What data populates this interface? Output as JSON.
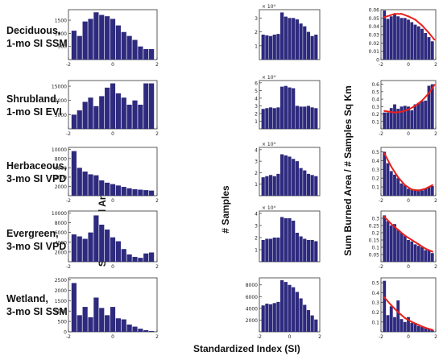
{
  "row_labels": [
    {
      "line1": "Deciduous,",
      "line2": "1-mo SI SSM"
    },
    {
      "line1": "Shrubland,",
      "line2": "1-mo SI EVI"
    },
    {
      "line1": "Herbaceous,",
      "line2": "3-mo SI VPD"
    },
    {
      "line1": "Evergreen,",
      "line2": "3-mo SI VPD"
    },
    {
      "line1": "Wetland,",
      "line2": "3-mo SI SSM"
    }
  ],
  "column_labels": {
    "burned": "Sum Burned Area Sq Km",
    "samples": "# Samples",
    "ratio": "Sum Burned Area / # Samples Sq Km"
  },
  "x_title": "Standardized Index (SI)",
  "colors": {
    "bar": "#2e2a7e",
    "fit": "#e8201c",
    "axis": "#333333"
  },
  "chart_data": [
    {
      "type": "bar",
      "row": "Deciduous, 1-mo SI SSM",
      "column": "Sum Burned Area Sq Km",
      "x": [
        -1.75,
        -1.5,
        -1.25,
        -1.0,
        -0.75,
        -0.5,
        -0.25,
        0.0,
        0.25,
        0.5,
        0.75,
        1.0,
        1.25,
        1.5,
        1.75
      ],
      "values": [
        1100,
        900,
        1450,
        1550,
        1800,
        1700,
        1650,
        1550,
        1300,
        1050,
        900,
        750,
        500,
        400,
        400
      ],
      "xlim": [
        -2,
        2
      ],
      "xticks": [
        "-2",
        "0",
        "2"
      ],
      "ylim": [
        0,
        1900
      ],
      "yticks": [
        {
          "v": 500,
          "label": "500"
        },
        {
          "v": 1000,
          "label": "1000"
        },
        {
          "v": 1500,
          "label": "1500"
        }
      ]
    },
    {
      "type": "bar",
      "row": "Deciduous, 1-mo SI SSM",
      "column": "# Samples",
      "x": [
        -1.75,
        -1.5,
        -1.25,
        -1.0,
        -0.75,
        -0.5,
        -0.25,
        0.0,
        0.25,
        0.5,
        0.75,
        1.0,
        1.25,
        1.5,
        1.75
      ],
      "values": [
        1.8,
        1.75,
        1.7,
        1.8,
        1.85,
        3.4,
        3.1,
        3.0,
        3.0,
        2.9,
        2.6,
        2.4,
        2.0,
        1.7,
        1.8
      ],
      "xlim": [
        -2,
        2
      ],
      "xticks": [],
      "ylim": [
        0,
        3.6
      ],
      "exponent": "× 10⁴",
      "yticks": [
        {
          "v": 1,
          "label": "1"
        },
        {
          "v": 2,
          "label": "2"
        },
        {
          "v": 3,
          "label": "3"
        }
      ]
    },
    {
      "type": "bar",
      "row": "Deciduous, 1-mo SI SSM",
      "column": "Sum Burned Area / # Samples Sq Km",
      "x": [
        -1.75,
        -1.5,
        -1.25,
        -1.0,
        -0.75,
        -0.5,
        -0.25,
        0.0,
        0.25,
        0.5,
        0.75,
        1.0,
        1.25,
        1.5,
        1.75
      ],
      "values": [
        0.059,
        0.049,
        0.052,
        0.055,
        0.052,
        0.05,
        0.05,
        0.048,
        0.045,
        0.042,
        0.04,
        0.037,
        0.032,
        0.027,
        0.022
      ],
      "xlim": [
        -2,
        2
      ],
      "xticks": [
        "-2",
        "0",
        "2"
      ],
      "ylim": [
        0,
        0.06
      ],
      "yticks": [
        {
          "v": 0,
          "label": "0"
        },
        {
          "v": 0.01,
          "label": "0.01"
        },
        {
          "v": 0.02,
          "label": "0.02"
        },
        {
          "v": 0.03,
          "label": "0.03"
        },
        {
          "v": 0.04,
          "label": "0.04"
        },
        {
          "v": 0.05,
          "label": "0.05"
        },
        {
          "v": 0.06,
          "label": "0.06"
        }
      ],
      "fit": {
        "x": [
          -1.75,
          -1.0,
          -0.5,
          0.0,
          0.5,
          1.0,
          1.5,
          1.9
        ],
        "y": [
          0.051,
          0.055,
          0.055,
          0.052,
          0.048,
          0.041,
          0.032,
          0.024
        ]
      }
    },
    {
      "type": "bar",
      "row": "Shrubland, 1-mo SI EVI",
      "column": "Sum Burned Area Sq Km",
      "x": [
        -1.75,
        -1.5,
        -1.25,
        -1.0,
        -0.75,
        -0.5,
        -0.25,
        0.0,
        0.25,
        0.5,
        0.75,
        1.0,
        1.25,
        1.5,
        1.75
      ],
      "values": [
        5000,
        6500,
        9500,
        11000,
        8000,
        11500,
        14500,
        16000,
        12500,
        11000,
        8500,
        10000,
        8500,
        16000,
        16000
      ],
      "xlim": [
        -2,
        2
      ],
      "xticks": [
        "-2",
        "0",
        "2"
      ],
      "ylim": [
        0,
        17000
      ],
      "yticks": [
        {
          "v": 5000,
          "label": "5000"
        },
        {
          "v": 10000,
          "label": "10000"
        },
        {
          "v": 15000,
          "label": "15000"
        }
      ]
    },
    {
      "type": "bar",
      "row": "Shrubland, 1-mo SI EVI",
      "column": "# Samples",
      "x": [
        -1.75,
        -1.5,
        -1.25,
        -1.0,
        -0.75,
        -0.5,
        -0.25,
        0.0,
        0.25,
        0.5,
        0.75,
        1.0,
        1.25,
        1.5,
        1.75
      ],
      "values": [
        2.6,
        2.7,
        2.8,
        2.7,
        2.8,
        5.5,
        5.6,
        5.4,
        5.3,
        3.0,
        2.9,
        2.9,
        3.0,
        2.8,
        2.7
      ],
      "xlim": [
        -2,
        2
      ],
      "xticks": [],
      "ylim": [
        0,
        6.3
      ],
      "exponent": "× 10⁴",
      "yticks": [
        {
          "v": 1,
          "label": "1"
        },
        {
          "v": 2,
          "label": "2"
        },
        {
          "v": 3,
          "label": "3"
        },
        {
          "v": 4,
          "label": "4"
        },
        {
          "v": 5,
          "label": "5"
        },
        {
          "v": 6,
          "label": "6"
        }
      ]
    },
    {
      "type": "bar",
      "row": "Shrubland, 1-mo SI EVI",
      "column": "Sum Burned Area / # Samples Sq Km",
      "x": [
        -1.75,
        -1.5,
        -1.25,
        -1.0,
        -0.75,
        -0.5,
        -0.25,
        0.0,
        0.25,
        0.5,
        0.75,
        1.0,
        1.25,
        1.5,
        1.75
      ],
      "values": [
        0.22,
        0.22,
        0.28,
        0.33,
        0.27,
        0.3,
        0.31,
        0.3,
        0.25,
        0.33,
        0.35,
        0.37,
        0.38,
        0.58,
        0.6
      ],
      "xlim": [
        -2,
        2
      ],
      "xticks": [
        "-2",
        "0",
        "2"
      ],
      "ylim": [
        0,
        0.65
      ],
      "yticks": [
        {
          "v": 0.1,
          "label": "0.1"
        },
        {
          "v": 0.2,
          "label": "0.2"
        },
        {
          "v": 0.3,
          "label": "0.3"
        },
        {
          "v": 0.4,
          "label": "0.4"
        },
        {
          "v": 0.5,
          "label": "0.5"
        },
        {
          "v": 0.6,
          "label": "0.6"
        }
      ],
      "fit": {
        "x": [
          -1.75,
          -1.0,
          -0.5,
          0.0,
          0.5,
          1.0,
          1.5,
          1.9
        ],
        "y": [
          0.24,
          0.22,
          0.23,
          0.26,
          0.31,
          0.38,
          0.48,
          0.59
        ]
      }
    },
    {
      "type": "bar",
      "row": "Herbaceous, 3-mo SI VPD",
      "column": "Sum Burned Area Sq Km",
      "x": [
        -1.75,
        -1.5,
        -1.25,
        -1.0,
        -0.75,
        -0.5,
        -0.25,
        0.0,
        0.25,
        0.5,
        0.75,
        1.0,
        1.25,
        1.5,
        1.75
      ],
      "values": [
        9600,
        6000,
        5200,
        4600,
        4400,
        3300,
        2800,
        2500,
        2200,
        1900,
        1600,
        1400,
        1300,
        1200,
        1100
      ],
      "xlim": [
        -2,
        2
      ],
      "xticks": [
        "-2",
        "0",
        "2"
      ],
      "ylim": [
        0,
        10400
      ],
      "yticks": [
        {
          "v": 2000,
          "label": "2000"
        },
        {
          "v": 4000,
          "label": "4000"
        },
        {
          "v": 6000,
          "label": "6000"
        },
        {
          "v": 8000,
          "label": "8000"
        },
        {
          "v": 10000,
          "label": "10000"
        }
      ]
    },
    {
      "type": "bar",
      "row": "Herbaceous, 3-mo SI VPD",
      "column": "# Samples",
      "x": [
        -1.75,
        -1.5,
        -1.25,
        -1.0,
        -0.75,
        -0.5,
        -0.25,
        0.0,
        0.25,
        0.5,
        0.75,
        1.0,
        1.25,
        1.5,
        1.75
      ],
      "values": [
        1.6,
        1.7,
        1.8,
        1.7,
        1.9,
        3.6,
        3.5,
        3.4,
        3.2,
        3.0,
        2.4,
        2.2,
        1.9,
        1.8,
        1.7
      ],
      "xlim": [
        -2,
        2
      ],
      "xticks": [],
      "ylim": [
        0,
        4.2
      ],
      "exponent": "× 10⁴",
      "yticks": [
        {
          "v": 1,
          "label": "1"
        },
        {
          "v": 2,
          "label": "2"
        },
        {
          "v": 3,
          "label": "3"
        },
        {
          "v": 4,
          "label": "4"
        }
      ]
    },
    {
      "type": "bar",
      "row": "Herbaceous, 3-mo SI VPD",
      "column": "Sum Burned Area / # Samples Sq Km",
      "x": [
        -1.75,
        -1.5,
        -1.25,
        -1.0,
        -0.75,
        -0.5,
        -0.25,
        0.0,
        0.25,
        0.5,
        0.75,
        1.0,
        1.25,
        1.5,
        1.75
      ],
      "values": [
        0.5,
        0.37,
        0.28,
        0.24,
        0.2,
        0.14,
        0.12,
        0.08,
        0.07,
        0.06,
        0.07,
        0.06,
        0.08,
        0.1,
        0.11
      ],
      "xlim": [
        -2,
        2
      ],
      "xticks": [
        "-2",
        "0",
        "2"
      ],
      "ylim": [
        0,
        0.55
      ],
      "yticks": [
        {
          "v": 0.1,
          "label": "0.1"
        },
        {
          "v": 0.2,
          "label": "0.2"
        },
        {
          "v": 0.3,
          "label": "0.3"
        },
        {
          "v": 0.4,
          "label": "0.4"
        },
        {
          "v": 0.5,
          "label": "0.5"
        }
      ],
      "fit": {
        "x": [
          -1.75,
          -1.25,
          -0.75,
          -0.25,
          0.25,
          0.75,
          1.25,
          1.75
        ],
        "y": [
          0.48,
          0.33,
          0.21,
          0.12,
          0.07,
          0.06,
          0.08,
          0.12
        ]
      }
    },
    {
      "type": "bar",
      "row": "Evergreen, 3-mo SI VPD",
      "column": "Sum Burned Area Sq Km",
      "x": [
        -1.75,
        -1.5,
        -1.25,
        -1.0,
        -0.75,
        -0.5,
        -0.25,
        0.0,
        0.25,
        0.5,
        0.75,
        1.0,
        1.25,
        1.5,
        1.75
      ],
      "values": [
        5600,
        5200,
        4700,
        6000,
        9500,
        7600,
        6600,
        5000,
        4200,
        2600,
        1500,
        1000,
        800,
        1700,
        1900
      ],
      "xlim": [
        -2,
        2
      ],
      "xticks": [
        "-2",
        "0",
        "2"
      ],
      "ylim": [
        0,
        10400
      ],
      "yticks": [
        {
          "v": 2000,
          "label": "2000"
        },
        {
          "v": 4000,
          "label": "4000"
        },
        {
          "v": 6000,
          "label": "6000"
        },
        {
          "v": 8000,
          "label": "8000"
        },
        {
          "v": 10000,
          "label": "10000"
        }
      ]
    },
    {
      "type": "bar",
      "row": "Evergreen, 3-mo SI VPD",
      "column": "# Samples",
      "x": [
        -1.75,
        -1.5,
        -1.25,
        -1.0,
        -0.75,
        -0.5,
        -0.25,
        0.0,
        0.25,
        0.5,
        0.75,
        1.0,
        1.25,
        1.5,
        1.75
      ],
      "values": [
        1.8,
        1.9,
        1.9,
        2.0,
        2.0,
        3.7,
        3.6,
        3.6,
        3.4,
        2.4,
        2.1,
        1.9,
        1.8,
        1.8,
        1.7
      ],
      "xlim": [
        -2,
        2
      ],
      "xticks": [],
      "ylim": [
        0,
        4.2
      ],
      "exponent": "× 10⁴",
      "yticks": [
        {
          "v": 1,
          "label": "1"
        },
        {
          "v": 2,
          "label": "2"
        },
        {
          "v": 3,
          "label": "3"
        },
        {
          "v": 4,
          "label": "4"
        }
      ]
    },
    {
      "type": "bar",
      "row": "Evergreen, 3-mo SI VPD",
      "column": "Sum Burned Area / # Samples Sq Km",
      "x": [
        -1.75,
        -1.5,
        -1.25,
        -1.0,
        -0.75,
        -0.5,
        -0.25,
        0.0,
        0.25,
        0.5,
        0.75,
        1.0,
        1.25,
        1.5,
        1.75
      ],
      "values": [
        0.32,
        0.28,
        0.25,
        0.26,
        0.22,
        0.2,
        0.18,
        0.15,
        0.14,
        0.12,
        0.11,
        0.1,
        0.08,
        0.08,
        0.06
      ],
      "xlim": [
        -2,
        2
      ],
      "xticks": [
        "-2",
        "0",
        "2"
      ],
      "ylim": [
        0,
        0.35
      ],
      "yticks": [
        {
          "v": 0.05,
          "label": "0.05"
        },
        {
          "v": 0.1,
          "label": "0.1"
        },
        {
          "v": 0.15,
          "label": "0.15"
        },
        {
          "v": 0.2,
          "label": "0.2"
        },
        {
          "v": 0.25,
          "label": "0.25"
        },
        {
          "v": 0.3,
          "label": "0.3"
        }
      ],
      "fit": {
        "x": [
          -1.75,
          -1.25,
          -0.75,
          -0.25,
          0.25,
          0.75,
          1.25,
          1.75
        ],
        "y": [
          0.31,
          0.26,
          0.22,
          0.18,
          0.15,
          0.12,
          0.09,
          0.07
        ]
      }
    },
    {
      "type": "bar",
      "row": "Wetland, 3-mo SI SSM",
      "column": "Sum Burned Area Sq Km",
      "x": [
        -1.75,
        -1.5,
        -1.25,
        -1.0,
        -0.75,
        -0.5,
        -0.25,
        0.0,
        0.25,
        0.5,
        0.75,
        1.0,
        1.25,
        1.5,
        1.75
      ],
      "values": [
        2350,
        800,
        1200,
        700,
        1650,
        1150,
        800,
        1200,
        650,
        600,
        350,
        250,
        150,
        80,
        40
      ],
      "xlim": [
        -2,
        2
      ],
      "xticks": [
        "-2",
        "0",
        "2"
      ],
      "ylim": [
        0,
        2600
      ],
      "yticks": [
        {
          "v": 0,
          "label": "0"
        },
        {
          "v": 500,
          "label": "500"
        },
        {
          "v": 1000,
          "label": "1000"
        },
        {
          "v": 1500,
          "label": "1500"
        },
        {
          "v": 2000,
          "label": "2000"
        },
        {
          "v": 2500,
          "label": "2500"
        }
      ]
    },
    {
      "type": "bar",
      "row": "Wetland, 3-mo SI SSM",
      "column": "# Samples",
      "x": [
        -1.75,
        -1.5,
        -1.25,
        -1.0,
        -0.75,
        -0.5,
        -0.25,
        0.0,
        0.25,
        0.5,
        0.75,
        1.0,
        1.25,
        1.5,
        1.75
      ],
      "values": [
        4500,
        4800,
        4700,
        4900,
        5100,
        8800,
        8500,
        8000,
        7600,
        6800,
        5700,
        4600,
        3700,
        2800,
        2100
      ],
      "xlim": [
        -2,
        2
      ],
      "xticks": [
        "-2",
        "0",
        "2"
      ],
      "ylim": [
        0,
        9200
      ],
      "yticks": [
        {
          "v": 2000,
          "label": "2000"
        },
        {
          "v": 4000,
          "label": "4000"
        },
        {
          "v": 6000,
          "label": "6000"
        },
        {
          "v": 8000,
          "label": "8000"
        }
      ]
    },
    {
      "type": "bar",
      "row": "Wetland, 3-mo SI SSM",
      "column": "Sum Burned Area / # Samples Sq Km",
      "x": [
        -1.75,
        -1.5,
        -1.25,
        -1.0,
        -0.75,
        -0.5,
        -0.25,
        0.0,
        0.25,
        0.5,
        0.75,
        1.0,
        1.25,
        1.5,
        1.75
      ],
      "values": [
        0.52,
        0.17,
        0.26,
        0.15,
        0.32,
        0.13,
        0.1,
        0.15,
        0.09,
        0.09,
        0.06,
        0.05,
        0.04,
        0.03,
        0.02
      ],
      "xlim": [
        -2,
        2
      ],
      "xticks": [
        "-2",
        "0",
        "2"
      ],
      "ylim": [
        0,
        0.55
      ],
      "yticks": [
        {
          "v": 0.1,
          "label": "0.1"
        },
        {
          "v": 0.2,
          "label": "0.2"
        },
        {
          "v": 0.3,
          "label": "0.3"
        },
        {
          "v": 0.4,
          "label": "0.4"
        },
        {
          "v": 0.5,
          "label": "0.5"
        }
      ],
      "fit": {
        "x": [
          -1.75,
          -1.25,
          -0.75,
          -0.25,
          0.25,
          0.75,
          1.25,
          1.75
        ],
        "y": [
          0.35,
          0.27,
          0.2,
          0.14,
          0.1,
          0.07,
          0.04,
          0.02
        ]
      }
    }
  ]
}
